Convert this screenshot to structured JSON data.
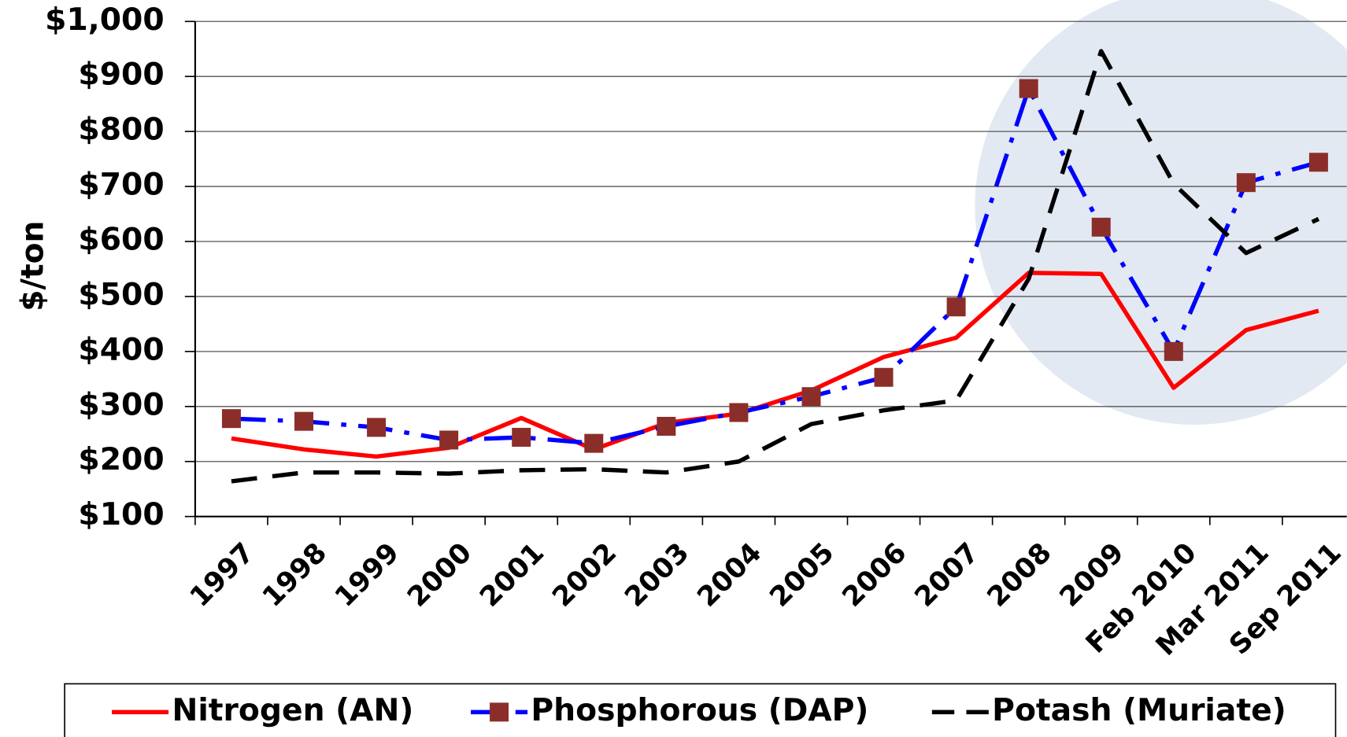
{
  "chart_data": {
    "type": "line",
    "y_label": "$/ton",
    "categories": [
      "1997",
      "1998",
      "1999",
      "2000",
      "2001",
      "2002",
      "2003",
      "2004",
      "2005",
      "2006",
      "2007",
      "2008",
      "2009",
      "Feb 2010",
      "Mar 2011",
      "Sep 2011"
    ],
    "series": [
      {
        "name": "Nitrogen (AN)",
        "color": "#ff0000",
        "dash": "none",
        "values": [
          242,
          222,
          209,
          225,
          279,
          222,
          270,
          287,
          329,
          390,
          425,
          543,
          541,
          334,
          439,
          474
        ]
      },
      {
        "name": "Phosphorous (DAP)",
        "color": "#0000ff",
        "dash": "dash-dot",
        "marker": "square",
        "marker_color": "#8b2e2a",
        "values": [
          278,
          273,
          262,
          239,
          244,
          233,
          264,
          289,
          318,
          353,
          481,
          878,
          626,
          400,
          707,
          744
        ]
      },
      {
        "name": "Potash (Muriate)",
        "color": "#000000",
        "dash": "dash",
        "values": [
          164,
          180,
          180,
          178,
          184,
          186,
          180,
          200,
          268,
          293,
          311,
          532,
          946,
          705,
          579,
          641
        ]
      }
    ],
    "ylim": [
      100,
      1000
    ],
    "yticks": [
      {
        "value": 100,
        "label": "$100"
      },
      {
        "value": 200,
        "label": "$200"
      },
      {
        "value": 300,
        "label": "$300"
      },
      {
        "value": 400,
        "label": "$400"
      },
      {
        "value": 500,
        "label": "$500"
      },
      {
        "value": 600,
        "label": "$600"
      },
      {
        "value": 700,
        "label": "$700"
      },
      {
        "value": 800,
        "label": "$800"
      },
      {
        "value": 900,
        "label": "$900"
      },
      {
        "value": 1000,
        "label": "$1,000"
      }
    ],
    "grid": true,
    "legend": "bottom"
  }
}
